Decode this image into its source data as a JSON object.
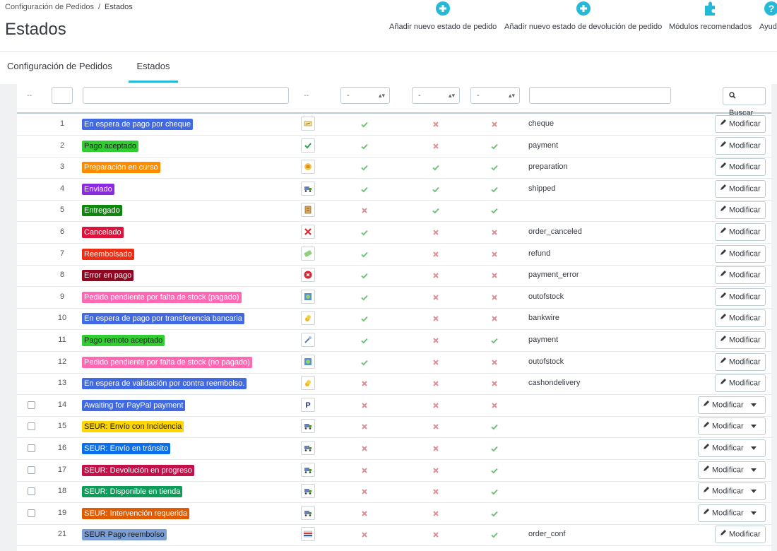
{
  "breadcrumb": {
    "parent": "Configuración de Pedidos",
    "separator": "/",
    "current": "Estados"
  },
  "page_title": "Estados",
  "toolbar": [
    {
      "label": "Añadir nuevo estado de pedido",
      "icon": "plus-circle-icon"
    },
    {
      "label": "Añadir nuevo estado de devolución de pedido",
      "icon": "plus-circle-icon"
    },
    {
      "label": "Módulos recomendados",
      "icon": "puzzle-icon"
    },
    {
      "label": "Ayuda",
      "icon": "help-icon"
    }
  ],
  "tabs": [
    {
      "label": "Configuración de Pedidos",
      "active": false
    },
    {
      "label": "Estados",
      "active": true
    }
  ],
  "filters": {
    "dash": "--",
    "select_value": "-",
    "search_label": "Buscar"
  },
  "colors": {
    "accent": "#25b9d7",
    "check": "#72c279",
    "cross": "#e08f95"
  },
  "rows": [
    {
      "id": "1",
      "name": "En espera de pago por cheque",
      "color": "#4169E1",
      "text": "#ffffff",
      "icon": "cheque-icon",
      "c1": "check",
      "c2": "cross",
      "c3": "cross",
      "template": "cheque",
      "checkbox": false,
      "dropdown": false
    },
    {
      "id": "2",
      "name": "Pago aceptado",
      "color": "#32CD32",
      "text": "#1b1b1b",
      "icon": "check-icon",
      "c1": "check",
      "c2": "cross",
      "c3": "check",
      "template": "payment",
      "checkbox": false,
      "dropdown": false
    },
    {
      "id": "3",
      "name": "Preparación en curso",
      "color": "#FF8C00",
      "text": "#ffffff",
      "icon": "box-icon",
      "c1": "check",
      "c2": "check",
      "c3": "check",
      "template": "preparation",
      "checkbox": false,
      "dropdown": false
    },
    {
      "id": "4",
      "name": "Enviado",
      "color": "#8A2BE2",
      "text": "#ffffff",
      "icon": "truck-icon",
      "c1": "check",
      "c2": "check",
      "c3": "check",
      "template": "shipped",
      "checkbox": false,
      "dropdown": false
    },
    {
      "id": "5",
      "name": "Entregado",
      "color": "#108510",
      "text": "#ffffff",
      "icon": "package-icon",
      "c1": "cross",
      "c2": "check",
      "c3": "check",
      "template": "",
      "checkbox": false,
      "dropdown": false
    },
    {
      "id": "6",
      "name": "Cancelado",
      "color": "#DC143C",
      "text": "#ffffff",
      "icon": "cross-icon",
      "c1": "check",
      "c2": "cross",
      "c3": "cross",
      "template": "order_canceled",
      "checkbox": false,
      "dropdown": false
    },
    {
      "id": "7",
      "name": "Reembolsado",
      "color": "#ec2e15",
      "text": "#ffffff",
      "icon": "refund-icon",
      "c1": "check",
      "c2": "cross",
      "c3": "cross",
      "template": "refund",
      "checkbox": false,
      "dropdown": false
    },
    {
      "id": "8",
      "name": "Error en pago",
      "color": "#8f0621",
      "text": "#ffffff",
      "icon": "error-icon",
      "c1": "check",
      "c2": "cross",
      "c3": "cross",
      "template": "payment_error",
      "checkbox": false,
      "dropdown": false
    },
    {
      "id": "9",
      "name": "Pedido pendiente por falta de stock (pagado)",
      "color": "#FF69B4",
      "text": "#ffffff",
      "icon": "stock-icon",
      "c1": "check",
      "c2": "cross",
      "c3": "cross",
      "template": "outofstock",
      "checkbox": false,
      "dropdown": false
    },
    {
      "id": "10",
      "name": "En espera de pago por transferencia bancaria",
      "color": "#4169E1",
      "text": "#ffffff",
      "icon": "coins-icon",
      "c1": "check",
      "c2": "cross",
      "c3": "cross",
      "template": "bankwire",
      "checkbox": false,
      "dropdown": false
    },
    {
      "id": "11",
      "name": "Pago remoto aceptado",
      "color": "#32CD32",
      "text": "#1b1b1b",
      "icon": "remote-icon",
      "c1": "check",
      "c2": "cross",
      "c3": "check",
      "template": "payment",
      "checkbox": false,
      "dropdown": false
    },
    {
      "id": "12",
      "name": "Pedido pendiente por falta de stock (no pagado)",
      "color": "#FF69B4",
      "text": "#ffffff",
      "icon": "stock-icon",
      "c1": "check",
      "c2": "cross",
      "c3": "cross",
      "template": "outofstock",
      "checkbox": false,
      "dropdown": false
    },
    {
      "id": "13",
      "name": "En espera de validación por contra reembolso.",
      "color": "#4169E1",
      "text": "#ffffff",
      "icon": "coins-icon",
      "c1": "cross",
      "c2": "cross",
      "c3": "cross",
      "template": "cashondelivery",
      "checkbox": false,
      "dropdown": false
    },
    {
      "id": "14",
      "name": "Awaiting for PayPal payment",
      "color": "#4169E1",
      "text": "#ffffff",
      "icon": "paypal-icon",
      "c1": "cross",
      "c2": "cross",
      "c3": "cross",
      "template": "",
      "checkbox": true,
      "dropdown": true
    },
    {
      "id": "15",
      "name": "SEUR: Envío con Incidencia",
      "color": "#FFD700",
      "text": "#1b1b1b",
      "icon": "truck-icon",
      "c1": "cross",
      "c2": "cross",
      "c3": "check",
      "template": "",
      "checkbox": true,
      "dropdown": true
    },
    {
      "id": "16",
      "name": "SEUR: Envío en tránsito",
      "color": "#0a6fe8",
      "text": "#ffffff",
      "icon": "truck-icon",
      "c1": "cross",
      "c2": "cross",
      "c3": "check",
      "template": "",
      "checkbox": true,
      "dropdown": true
    },
    {
      "id": "17",
      "name": "SEUR: Devolución en progreso",
      "color": "#c2104a",
      "text": "#ffffff",
      "icon": "truck-icon",
      "c1": "cross",
      "c2": "cross",
      "c3": "check",
      "template": "",
      "checkbox": true,
      "dropdown": true
    },
    {
      "id": "18",
      "name": "SEUR: Disponible en tienda",
      "color": "#0f9b5a",
      "text": "#ffffff",
      "icon": "truck-icon",
      "c1": "cross",
      "c2": "cross",
      "c3": "check",
      "template": "",
      "checkbox": true,
      "dropdown": true
    },
    {
      "id": "19",
      "name": "SEUR: Intervención requerida",
      "color": "#e05a00",
      "text": "#ffffff",
      "icon": "truck-icon",
      "c1": "cross",
      "c2": "cross",
      "c3": "check",
      "template": "",
      "checkbox": true,
      "dropdown": true
    },
    {
      "id": "21",
      "name": "SEUR Pago reembolso",
      "color": "#7b9fd4",
      "text": "#1b1b1b",
      "icon": "card-icon",
      "c1": "cross",
      "c2": "cross",
      "c3": "check",
      "template": "order_conf",
      "checkbox": false,
      "dropdown": false
    }
  ],
  "modify_label": "Modificar"
}
